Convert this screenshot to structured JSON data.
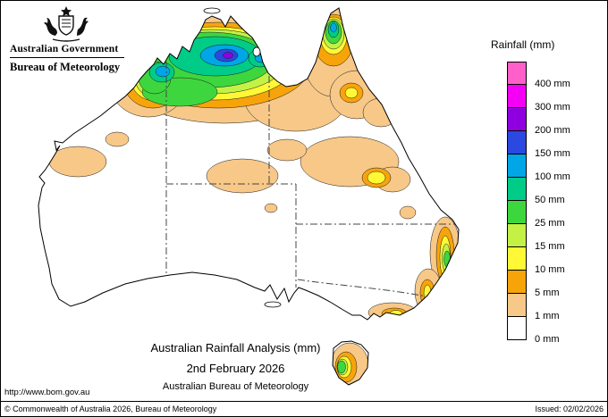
{
  "header": {
    "government": "Australian Government",
    "bureau": "Bureau of Meteorology"
  },
  "legend": {
    "title": "Rainfall (mm)",
    "entries": [
      {
        "label": "400 mm",
        "color": "#FF5FC8"
      },
      {
        "label": "300 mm",
        "color": "#F400F4"
      },
      {
        "label": "200 mm",
        "color": "#8F00E0"
      },
      {
        "label": "150 mm",
        "color": "#2B48E0"
      },
      {
        "label": "100 mm",
        "color": "#00A6E6"
      },
      {
        "label": "50 mm",
        "color": "#00CC88"
      },
      {
        "label": "25 mm",
        "color": "#3ED63E"
      },
      {
        "label": "15 mm",
        "color": "#C3F245"
      },
      {
        "label": "10 mm",
        "color": "#FFF835"
      },
      {
        "label": "5 mm",
        "color": "#F7A40B"
      },
      {
        "label": "1 mm",
        "color": "#F7C888"
      },
      {
        "label": "0 mm",
        "color": "#FFFFFF"
      }
    ]
  },
  "caption": {
    "title": "Australian Rainfall Analysis (mm)",
    "date": "2nd February 2026",
    "org": "Australian Bureau of Meteorology"
  },
  "links": {
    "url": "http://www.bom.gov.au"
  },
  "footer": {
    "copyright": "© Commonwealth of Australia 2026, Bureau of Meteorology",
    "issued": "Issued: 02/02/2026"
  }
}
